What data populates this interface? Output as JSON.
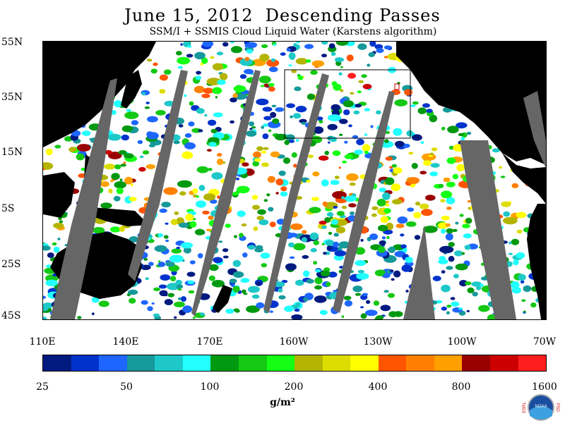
{
  "title": "June 15, 2012  Descending Passes",
  "subtitle": "SSM/I + SSMIS Cloud Liquid Water (Karstens algorithm)",
  "lat_labels": [
    "55N",
    "35N",
    "15N",
    "5S",
    "25S",
    "45S"
  ],
  "lon_labels": [
    "110E",
    "140E",
    "170E",
    "160W",
    "130W",
    "100W",
    "70W"
  ],
  "colorbar": {
    "colors": [
      "#001a80",
      "#0033cc",
      "#1e66ff",
      "#16999a",
      "#1ec8c8",
      "#22ffff",
      "#009910",
      "#14c814",
      "#14ff14",
      "#b4b400",
      "#dcdc00",
      "#ffff00",
      "#ff5500",
      "#ff8000",
      "#ffa000",
      "#990000",
      "#cc0000",
      "#ff1e1e"
    ],
    "tick_labels": [
      "25",
      "50",
      "100",
      "200",
      "400",
      "800",
      "1600"
    ],
    "unit": "g/m²"
  },
  "colors": {
    "land": "#000000",
    "no_data": "#666666",
    "clear": "#ffffff"
  },
  "logo": {
    "left_text": "ESRL",
    "right_text": "PSD",
    "center_text": "NOAA"
  }
}
